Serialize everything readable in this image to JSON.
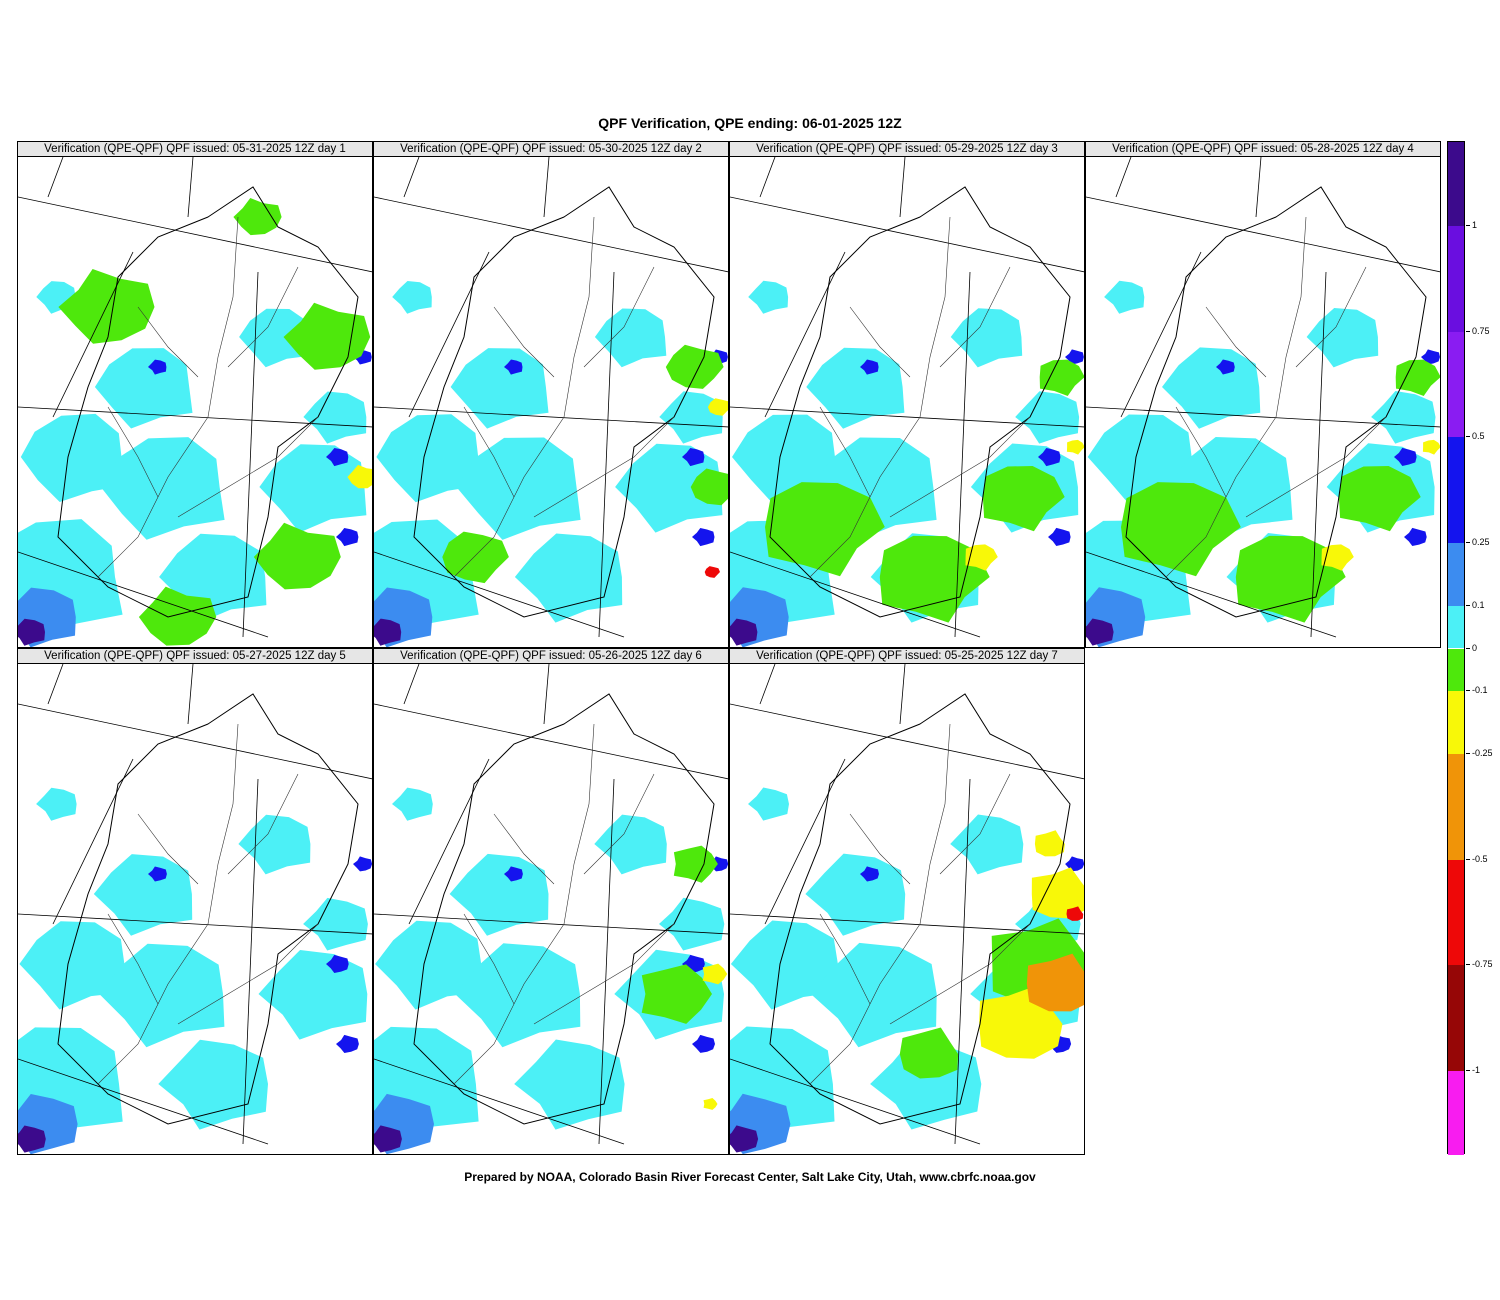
{
  "title": "QPF Verification, QPE ending: 06-01-2025 12Z",
  "footer": "Prepared by NOAA, Colorado Basin River Forecast Center, Salt Lake City, Utah, www.cbrfc.noaa.gov",
  "panels": [
    {
      "label": "Verification (QPE-QPF)  QPF issued: 05-31-2025 12Z day 1",
      "pattern": "mixed-green"
    },
    {
      "label": "Verification (QPE-QPF)  QPF issued: 05-30-2025 12Z day 2",
      "pattern": "mostly-cyan-east-yellow"
    },
    {
      "label": "Verification (QPE-QPF)  QPF issued: 05-29-2025 12Z day 3",
      "pattern": "green-south"
    },
    {
      "label": "Verification (QPE-QPF)  QPF issued: 05-28-2025 12Z day 4",
      "pattern": "green-south"
    },
    {
      "label": "Verification (QPE-QPF)  QPF issued: 05-27-2025 12Z day 5",
      "pattern": "cyan"
    },
    {
      "label": "Verification (QPE-QPF)  QPF issued: 05-26-2025 12Z day 6",
      "pattern": "cyan-east-green"
    },
    {
      "label": "Verification (QPE-QPF)  QPF issued: 05-25-2025 12Z day 7",
      "pattern": "east-orange"
    }
  ],
  "legend": {
    "bins": [
      {
        "from": 1.0,
        "to": 1.2,
        "color": "#3c0a8c"
      },
      {
        "from": 0.75,
        "to": 1.0,
        "color": "#6a0ee0"
      },
      {
        "from": 0.5,
        "to": 0.75,
        "color": "#8a1cf2"
      },
      {
        "from": 0.25,
        "to": 0.5,
        "color": "#1414ee"
      },
      {
        "from": 0.1,
        "to": 0.25,
        "color": "#3c8cf0"
      },
      {
        "from": 0.0,
        "to": 0.1,
        "color": "#4cf0f6"
      },
      {
        "from": -0.1,
        "to": 0.0,
        "color": "#4ee80c"
      },
      {
        "from": -0.25,
        "to": -0.1,
        "color": "#f8f808"
      },
      {
        "from": -0.5,
        "to": -0.25,
        "color": "#f09408"
      },
      {
        "from": -0.75,
        "to": -0.5,
        "color": "#ee0808"
      },
      {
        "from": -1.0,
        "to": -0.75,
        "color": "#960606"
      },
      {
        "from": -1.2,
        "to": -1.0,
        "color": "#f81cf0"
      }
    ],
    "ticks": [
      "1",
      "0.75",
      "0.5",
      "0.25",
      "0.1",
      "0",
      "-0.1",
      "-0.25",
      "-0.5",
      "-0.75",
      "-1"
    ]
  }
}
